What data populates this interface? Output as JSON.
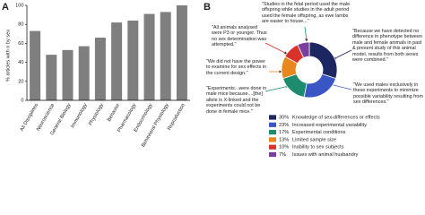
{
  "chart_data": [
    {
      "type": "bar",
      "label": "A",
      "y_label": "% articles with n by sex",
      "categories": [
        "All Disciplines",
        "Neuroscience",
        "General Biology",
        "Immunology",
        "Physiology",
        "Behavior",
        "Pharmacology",
        "Endocrinology",
        "Behavioral Physiology",
        "Reproduction"
      ],
      "values": [
        73,
        48,
        53,
        57,
        66,
        82,
        84,
        91,
        93,
        100
      ],
      "color": "#7f7f7f",
      "ylim": [
        0,
        100
      ],
      "yticks": [
        0,
        20,
        40,
        60,
        80,
        100
      ]
    },
    {
      "type": "donut",
      "label": "B",
      "categories": [
        "Knowledge of sex-differences or effects",
        "Increased experimental variability",
        "Experimental conditions",
        "Limited sample size",
        "Inability to sex subjects",
        "Issues with animal husbandry"
      ],
      "values": [
        30,
        23,
        17,
        13,
        10,
        7
      ],
      "value_labels": [
        "30%",
        "23%",
        "17%",
        "13%",
        "10%",
        "7%"
      ],
      "colors": [
        "#1c2661",
        "#3a56c5",
        "#1d8c6e",
        "#e8871e",
        "#d8322b",
        "#7a3f9d"
      ],
      "annotations": [
        "\"Studies in the fetal period used the male offspring while studies in the adult period used the female offspring, as ewe lambs are easier to house...\"",
        "\"All animals analysed were P3 or younger. Thus no sex determination was attempted.\"",
        "\"Because we have detected no difference in phenotype between male and female animals in past & present study of this animal model, results from both sexes were combined.\"",
        "\"We did not have the power to examine for sex effects in the current design.\"",
        "\"Experiments...were done in male mice because....[the] allele is X-linked and the experiments could not be done in female mice.\"",
        "\"We used males exclusively in these experiments to minimize possible variability resulting from sex differences.\""
      ]
    }
  ]
}
